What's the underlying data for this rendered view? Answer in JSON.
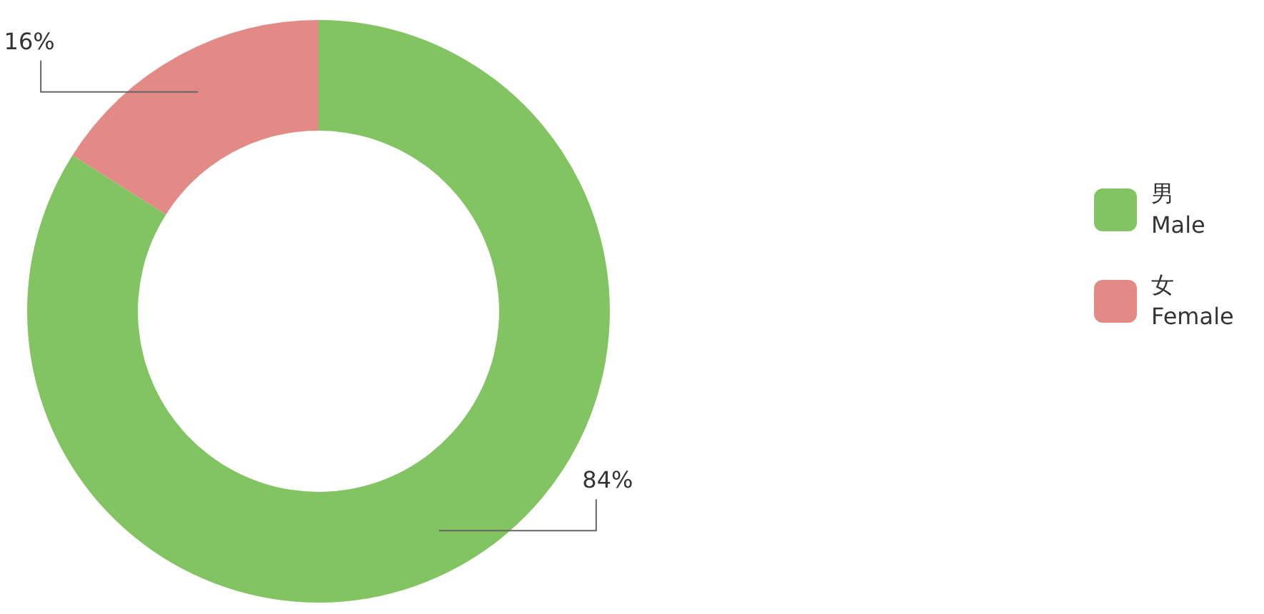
{
  "chart_data": {
    "type": "donut",
    "categories": [
      "男\nMale",
      "女\nFemale"
    ],
    "values": [
      84,
      16
    ],
    "colors": [
      "#82c462",
      "#e38a86"
    ],
    "value_labels": [
      "84%",
      "16%"
    ],
    "legend": "right"
  }
}
